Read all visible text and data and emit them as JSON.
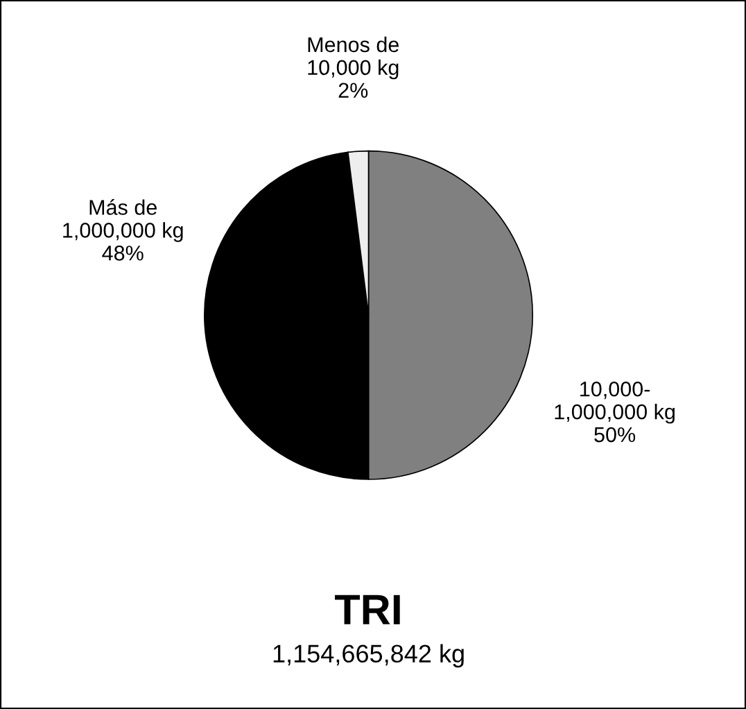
{
  "chart_data": {
    "type": "pie",
    "title": "TRI",
    "subtitle": "1,154,665,842 kg",
    "categories": [
      "10,000-\n1,000,000 kg",
      "Más de\n1,000,000 kg",
      "Menos de\n10,000 kg"
    ],
    "values": [
      50,
      48,
      2
    ],
    "value_labels": [
      "50%",
      "48%",
      "2%"
    ],
    "colors": [
      "#808080",
      "#000000",
      "#eeeeee"
    ]
  }
}
